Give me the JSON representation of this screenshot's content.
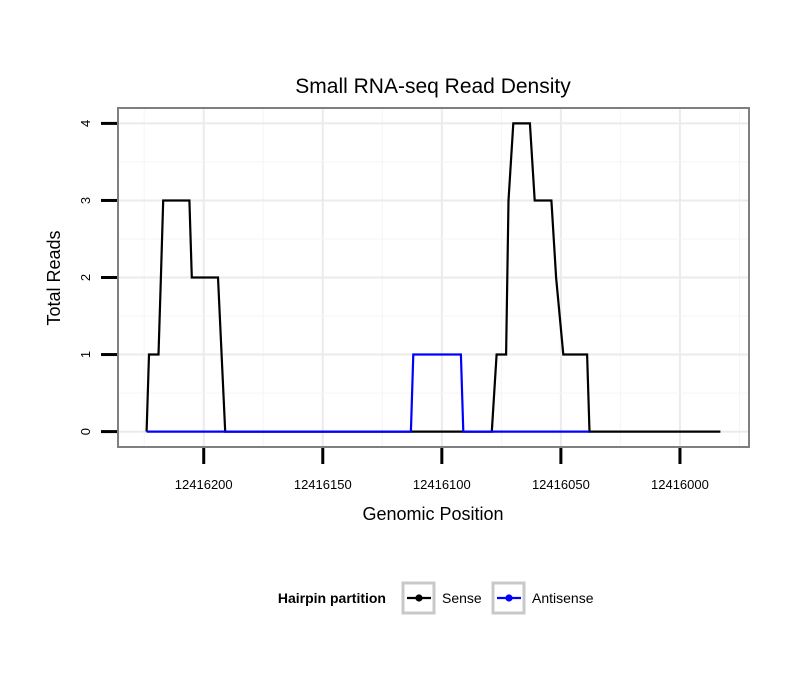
{
  "chart_data": {
    "type": "line",
    "title": "Small RNA-seq Read Density",
    "xlabel": "Genomic Position",
    "ylabel": "Total Reads",
    "xlim": [
      12416236,
      12415971
    ],
    "ylim": [
      -0.2,
      4.2
    ],
    "x_reversed": true,
    "x_ticks": [
      12416200,
      12416150,
      12416100,
      12416050,
      12416000
    ],
    "y_ticks": [
      0,
      1,
      2,
      3,
      4
    ],
    "grid": true,
    "legend_title": "Hairpin partition",
    "legend_position": "bottom",
    "series": [
      {
        "name": "Sense",
        "color": "#000000",
        "points": [
          [
            12416224,
            0
          ],
          [
            12416223,
            1
          ],
          [
            12416219,
            1
          ],
          [
            12416218,
            2
          ],
          [
            12416217,
            3
          ],
          [
            12416206,
            3
          ],
          [
            12416205,
            2
          ],
          [
            12416194,
            2
          ],
          [
            12416191,
            0
          ],
          [
            12416079,
            0
          ],
          [
            12416077,
            1
          ],
          [
            12416073,
            1
          ],
          [
            12416072,
            3
          ],
          [
            12416070,
            4
          ],
          [
            12416063,
            4
          ],
          [
            12416061,
            3
          ],
          [
            12416054,
            3
          ],
          [
            12416052,
            2
          ],
          [
            12416049,
            1
          ],
          [
            12416039,
            1
          ],
          [
            12416038,
            0
          ],
          [
            12415983,
            0
          ]
        ]
      },
      {
        "name": "Antisense",
        "color": "#0000ff",
        "points": [
          [
            12416224,
            0
          ],
          [
            12416113,
            0
          ],
          [
            12416112,
            1
          ],
          [
            12416092,
            1
          ],
          [
            12416091,
            0
          ],
          [
            12416038,
            0
          ]
        ]
      }
    ]
  }
}
